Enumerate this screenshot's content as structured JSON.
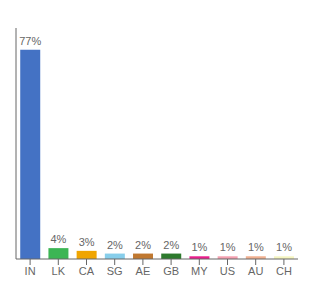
{
  "chart_data": {
    "type": "bar",
    "categories": [
      "IN",
      "LK",
      "CA",
      "SG",
      "AE",
      "GB",
      "MY",
      "US",
      "AU",
      "CH"
    ],
    "values": [
      77,
      4,
      3,
      2,
      2,
      2,
      1,
      1,
      1,
      1
    ],
    "value_labels": [
      "77%",
      "4%",
      "3%",
      "2%",
      "2%",
      "2%",
      "1%",
      "1%",
      "1%",
      "1%"
    ],
    "colors": [
      "#4472c4",
      "#3cb554",
      "#f0a500",
      "#87ceeb",
      "#c07830",
      "#2d7a2d",
      "#e91e8c",
      "#f4a0b0",
      "#f0b090",
      "#f5f5c0"
    ],
    "ylim": [
      0,
      85
    ],
    "data_labels": true,
    "tick_labels": "x"
  }
}
